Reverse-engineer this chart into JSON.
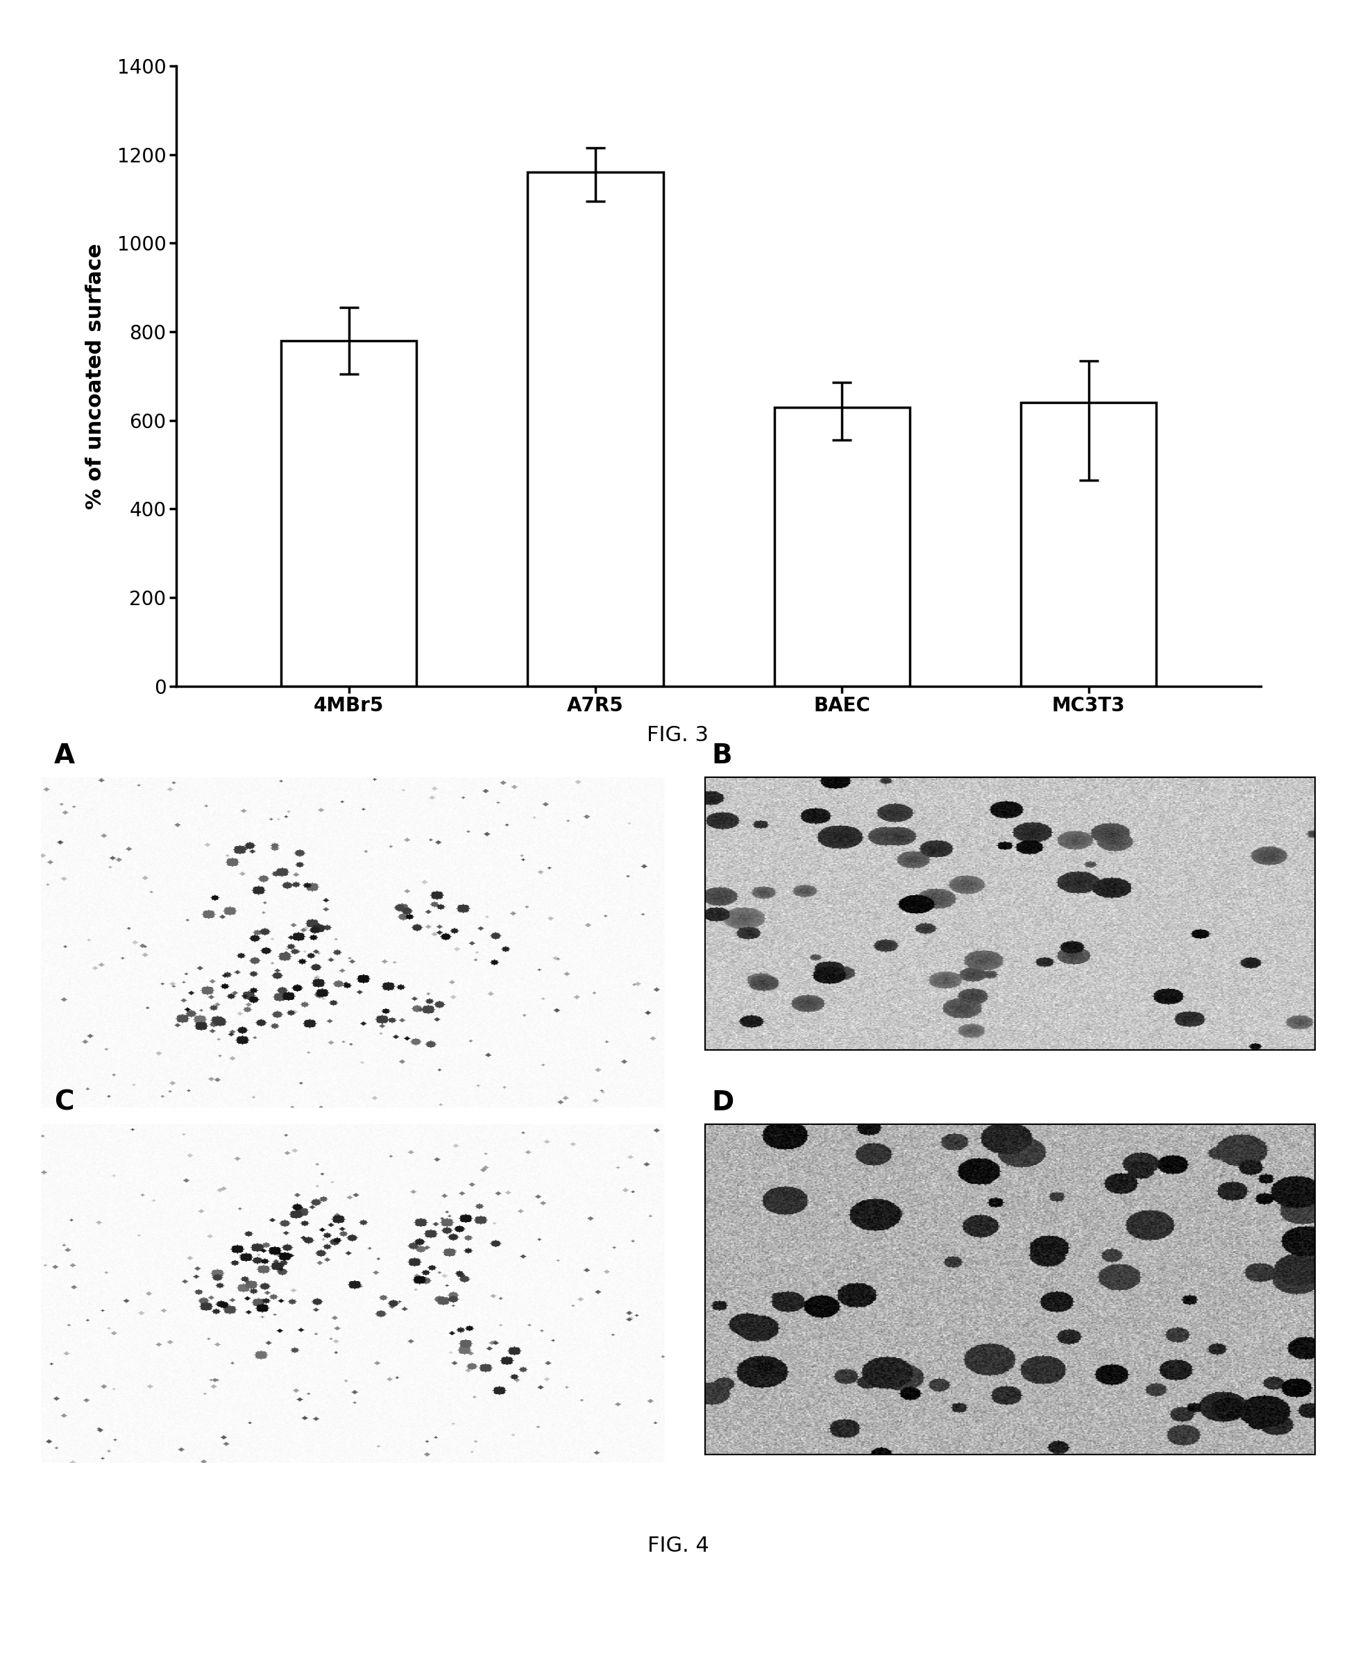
{
  "categories": [
    "4MBr5",
    "A7R5",
    "BAEC",
    "MC3T3"
  ],
  "values": [
    780,
    1160,
    630,
    640
  ],
  "errors_upper": [
    75,
    55,
    55,
    95
  ],
  "errors_lower": [
    75,
    65,
    75,
    175
  ],
  "ylabel": "% of uncoated surface",
  "ylim": [
    0,
    1400
  ],
  "yticks": [
    0,
    200,
    400,
    600,
    800,
    1000,
    1200,
    1400
  ],
  "fig3_label": "FIG. 3",
  "fig4_label": "FIG. 4",
  "panel_labels": [
    "A",
    "B",
    "C",
    "D"
  ],
  "bar_color": "#ffffff",
  "bar_edge_color": "#000000",
  "background_color": "#ffffff",
  "bar_width": 0.55,
  "fig_width": 19.54,
  "fig_height": 23.82,
  "label_fontsize": 22,
  "tick_fontsize": 20,
  "ylabel_fontsize": 22,
  "panel_label_fontsize": 28
}
